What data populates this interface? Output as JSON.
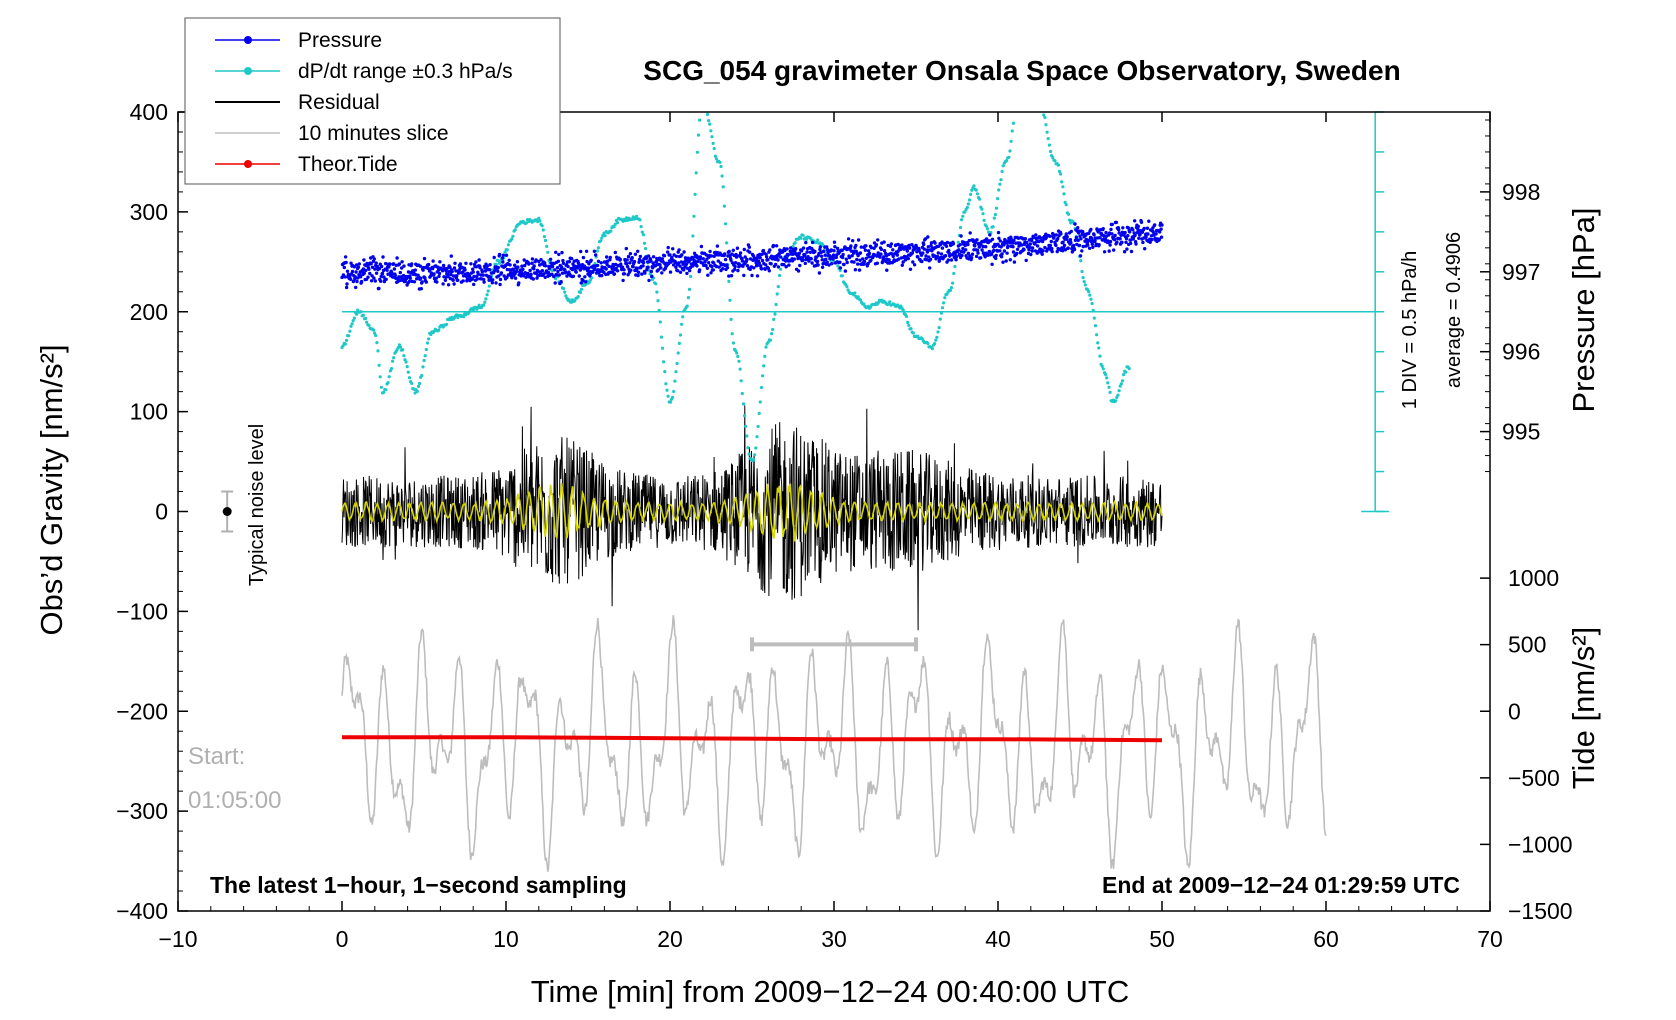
{
  "chart_data": {
    "type": "line",
    "title": "SCG_054 gravimeter Onsala Space Observatory, Sweden",
    "xlabel": "Time [min] from 2009−12−24 00:40:00 UTC",
    "ylabel_left": "Obs’d Gravity [nm/s²]",
    "ylabel_right_pressure": "Pressure [hPa]",
    "ylabel_right_tide": "Tide [nm/s²]",
    "xlim": [
      -10,
      70
    ],
    "ylim": [
      -400,
      400
    ],
    "x_ticks": [
      -10,
      0,
      10,
      20,
      30,
      40,
      50,
      60,
      70
    ],
    "x_tick_labels": [
      "−10",
      "0",
      "10",
      "20",
      "30",
      "40",
      "50",
      "60",
      "70"
    ],
    "y_ticks": [
      400,
      300,
      200,
      100,
      0,
      -100,
      -200,
      -300,
      -400
    ],
    "y_tick_labels": [
      "400",
      "300",
      "200",
      "100",
      "0",
      "−100",
      "−200",
      "−300",
      "−400"
    ],
    "pressure_ticks": [
      998,
      997,
      996,
      995
    ],
    "pressure_tick_labels": [
      "998",
      "997",
      "996",
      "995"
    ],
    "pressure_axis_gravity_equiv": [
      320,
      240,
      160,
      80
    ],
    "tide_ticks": [
      1000,
      500,
      0,
      -500,
      -1000,
      -1500
    ],
    "tide_tick_labels": [
      "1000",
      "500",
      "0",
      "−500",
      "−1000",
      "−1500"
    ],
    "tide_axis_gravity_equiv": [
      -66.7,
      -133.3,
      -200,
      -266.7,
      -333.3,
      -400
    ],
    "legend": [
      {
        "name": "Pressure",
        "color": "#0000ee",
        "style": "line-dot"
      },
      {
        "name": "dP/dt range ±0.3 hPa/s",
        "color": "#1ec8c8",
        "style": "line-dot"
      },
      {
        "name": "Residual",
        "color": "#000000",
        "style": "line"
      },
      {
        "name": "10 minutes slice",
        "color": "#bdbdbd",
        "style": "line"
      },
      {
        "name": "Theor.Tide",
        "color": "#ee0000",
        "style": "line-dot"
      }
    ],
    "series": [
      {
        "name": "Pressure",
        "color": "#0000ee",
        "x": [
          0,
          5,
          10,
          15,
          20,
          25,
          30,
          35,
          40,
          45,
          50
        ],
        "y": [
          240,
          238,
          242,
          245,
          248,
          252,
          256,
          259,
          264,
          272,
          280
        ],
        "spread": 12
      },
      {
        "name": "dP/dt",
        "color": "#1ec8c8",
        "x": [
          0,
          1,
          2,
          2.5,
          3.5,
          4.5,
          5.5,
          7,
          8.5,
          9.5,
          11,
          12,
          13,
          14,
          15,
          16,
          17,
          18,
          19,
          20,
          21,
          22,
          23,
          24,
          25,
          26,
          27,
          28,
          29,
          30,
          31,
          32,
          33,
          34,
          35,
          36,
          37,
          38,
          38.5,
          39.5,
          40.5,
          41.5,
          42.5,
          43.5,
          44.5,
          45.5,
          46.5,
          47,
          48
        ],
        "y": [
          165,
          200,
          180,
          120,
          165,
          120,
          180,
          195,
          205,
          250,
          290,
          292,
          235,
          210,
          230,
          278,
          292,
          295,
          232,
          110,
          205,
          410,
          350,
          160,
          50,
          170,
          255,
          275,
          270,
          250,
          220,
          205,
          210,
          205,
          175,
          165,
          220,
          300,
          325,
          280,
          350,
          450,
          410,
          350,
          290,
          220,
          140,
          110,
          145
        ]
      },
      {
        "name": "Residual",
        "color": "#000000",
        "x_range": [
          0,
          50
        ],
        "amplitude": 45
      },
      {
        "name": "Residual filtered",
        "color": "#d4d400",
        "x_range": [
          0,
          50
        ],
        "amplitude": 10
      },
      {
        "name": "10 minutes slice",
        "color": "#bdbdbd",
        "x_range": [
          0,
          60
        ],
        "amplitude_tide": 850
      },
      {
        "name": "Theor.Tide",
        "color": "#ee0000",
        "x": [
          0,
          10,
          20,
          30,
          40,
          50
        ],
        "y": [
          -226,
          -226,
          -227,
          -228,
          -228,
          -229
        ]
      }
    ],
    "annotations": {
      "noise_label": "Typical noise level",
      "div_label": "1 DIV = 0.5 hPa/h",
      "average_label": "average = 0.4906",
      "start_label": "Start:",
      "start_time": "01:05:00",
      "bottom_left": "The latest 1−hour, 1−second sampling",
      "bottom_right": "End at 2009−12−24 01:29:59 UTC"
    },
    "slice_bar": {
      "x": [
        25,
        35
      ],
      "y": -133
    },
    "noise_bar": {
      "x": -7,
      "y": 0,
      "half_range": 20
    },
    "dpdt_scale": {
      "x": 63,
      "y_top": 400,
      "y_bottom": 0,
      "y_mid": 200
    }
  }
}
